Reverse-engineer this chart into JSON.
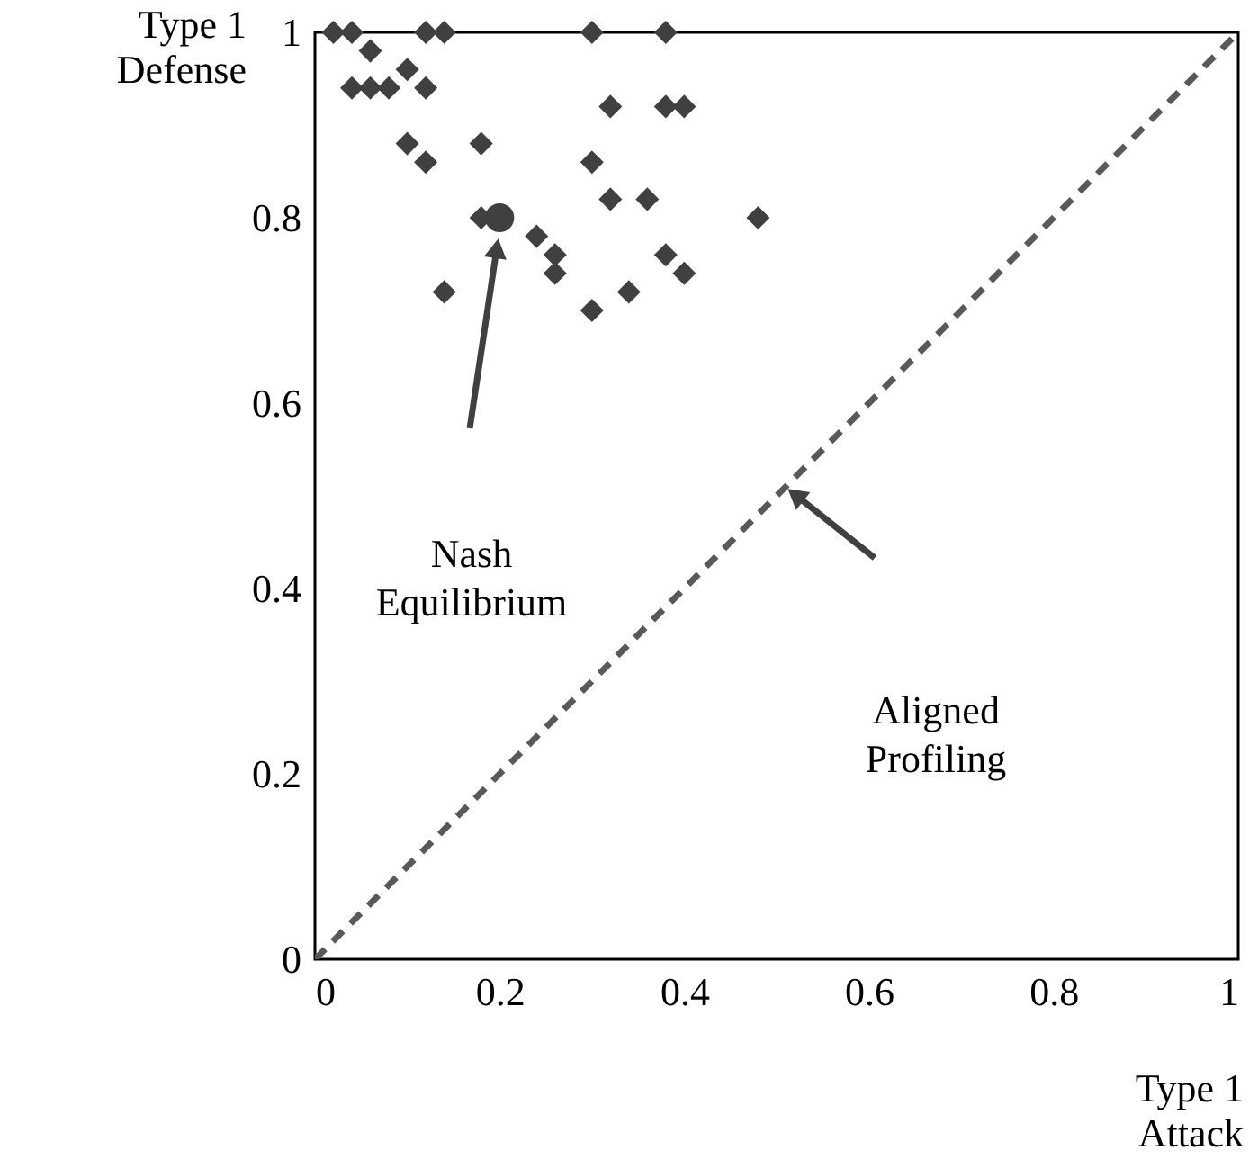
{
  "chart_data": {
    "type": "scatter",
    "xlabel": "Type 1\nAttack",
    "ylabel": "Type 1\nDefense",
    "xlim": [
      0,
      1
    ],
    "ylim": [
      0,
      1
    ],
    "xticks": [
      0,
      0.2,
      0.4,
      0.6,
      0.8,
      1
    ],
    "yticks": [
      0,
      0.2,
      0.4,
      0.6,
      0.8,
      1
    ],
    "grid": false,
    "series": [
      {
        "type": "line",
        "color": "#595959",
        "line_style": "dashed",
        "marker": "none",
        "x": [
          0,
          1
        ],
        "values": [
          0,
          1
        ]
      },
      {
        "type": "scatter",
        "color": "#404040",
        "marker": "diamond",
        "x": [
          0.02,
          0.04,
          0.12,
          0.14,
          0.3,
          0.38,
          0.06,
          0.04,
          0.06,
          0.08,
          0.1,
          0.12,
          0.1,
          0.12,
          0.18,
          0.3,
          0.32,
          0.38,
          0.4,
          0.32,
          0.36,
          0.48,
          0.18,
          0.24,
          0.26,
          0.26,
          0.38,
          0.4,
          0.14,
          0.3,
          0.34
        ],
        "values": [
          1,
          1,
          1,
          1,
          1,
          1,
          0.98,
          0.94,
          0.94,
          0.94,
          0.96,
          0.94,
          0.88,
          0.86,
          0.88,
          0.86,
          0.92,
          0.92,
          0.92,
          0.82,
          0.82,
          0.8,
          0.8,
          0.78,
          0.76,
          0.74,
          0.76,
          0.74,
          0.72,
          0.7,
          0.72
        ]
      },
      {
        "type": "scatter",
        "color": "#404040",
        "marker": "circle",
        "x": [
          0.2
        ],
        "values": [
          0.8
        ]
      }
    ],
    "annotations": [
      "Nash\nEquilibrium",
      "Aligned\nProfiling"
    ]
  }
}
